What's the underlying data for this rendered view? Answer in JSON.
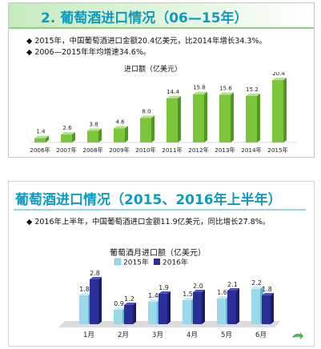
{
  "panel1": {
    "title": "2. 葡萄酒进口情况（06—15年）",
    "bullets": [
      "◆ 2015年，中国葡萄酒进口金额20.4亿美元，比2014年增长34.3%。",
      "◆ 2006—2015年年均增速34.6%。"
    ]
  },
  "panel2": {
    "title": "葡萄酒进口情况（2015、2016年上半年）",
    "bullets": [
      "◆ 2016年上半年，中国葡萄酒进口金额11.9亿美元，同比增长27.8%。"
    ]
  },
  "colors": {
    "title": "#0e9bbf",
    "bar_green": "#7cc63c",
    "bar_2015": "#9ad9ea",
    "bar_2016": "#2a2e96"
  },
  "icons": {
    "corner": "share-icon"
  },
  "chart_data": [
    {
      "type": "bar",
      "title": "进口额（亿美元）",
      "categories": [
        "2006年",
        "2007年",
        "2008年",
        "2009年",
        "2010年",
        "2011年",
        "2012年",
        "2013年",
        "2014年",
        "2015年"
      ],
      "values": [
        1.4,
        2.6,
        3.8,
        4.6,
        8.0,
        14.4,
        15.8,
        15.6,
        15.2,
        20.4
      ],
      "ylim": [
        0,
        22
      ],
      "grid": false
    },
    {
      "type": "bar",
      "title": "葡萄酒月进口额（亿美元）",
      "categories": [
        "1月",
        "2月",
        "3月",
        "4月",
        "5月",
        "6月"
      ],
      "series": [
        {
          "name": "2015年",
          "values": [
            1.8,
            0.9,
            1.4,
            1.5,
            1.6,
            2.2
          ]
        },
        {
          "name": "2016年",
          "values": [
            2.8,
            1.2,
            1.9,
            2.0,
            2.1,
            1.8
          ]
        }
      ],
      "ylim": [
        0,
        3.2
      ],
      "legend": "top-center",
      "grid": false
    }
  ]
}
